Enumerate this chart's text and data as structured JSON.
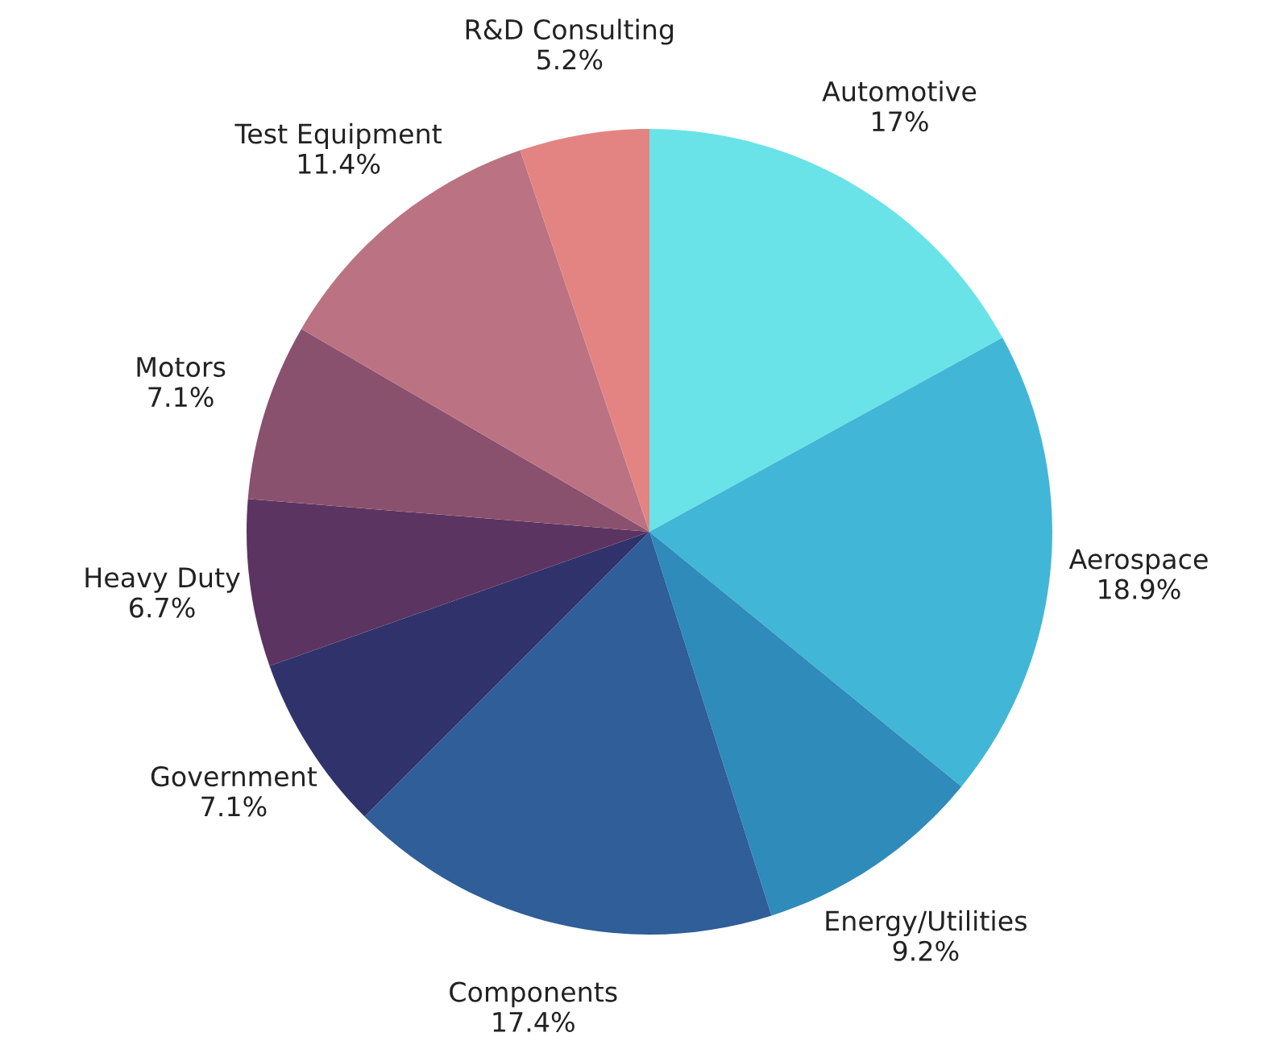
{
  "chart_data": {
    "type": "pie",
    "categories": [
      "Automotive",
      "Aerospace",
      "Energy/Utilities",
      "Components",
      "Government",
      "Heavy Duty",
      "Motors",
      "Test Equipment",
      "R&D Consulting"
    ],
    "values": [
      17,
      18.9,
      9.2,
      17.4,
      7.1,
      6.7,
      7.1,
      11.4,
      5.2
    ],
    "value_labels": [
      "17%",
      "18.9%",
      "9.2%",
      "17.4%",
      "7.1%",
      "6.7%",
      "7.1%",
      "11.4%",
      "5.2%"
    ],
    "colors": [
      "#69e3e8",
      "#42b6d6",
      "#2e8bba",
      "#2f5e98",
      "#30336b",
      "#5c3461",
      "#8a516e",
      "#bb7383",
      "#e38483"
    ],
    "legend": false
  }
}
